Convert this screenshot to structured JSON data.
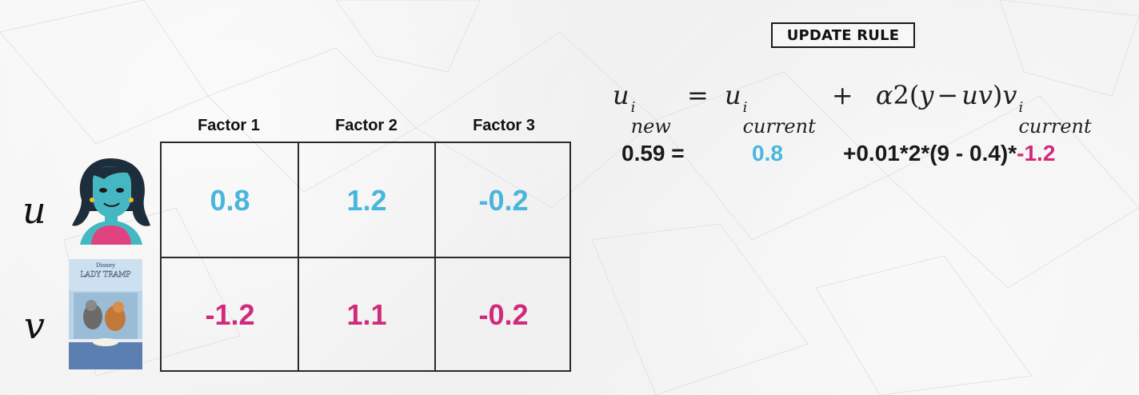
{
  "header": {
    "update_rule_label": "UPDATE RULE"
  },
  "formula": {
    "u": "u",
    "new_sup": "i",
    "new_sub": "new",
    "equals": "=",
    "current_sub": "current",
    "current_sup": "i",
    "plus": "+",
    "alpha": "α",
    "two": "2",
    "paren_open": "(",
    "y": "y",
    "minus": "−",
    "uv": "uv",
    "paren_close": ")",
    "v": "v",
    "v_sup": "i",
    "v_sub": "current"
  },
  "calculation": {
    "lhs": "0.59 =",
    "current": "0.8",
    "rest_prefix": "+0.01*2*(9 - 0.4)*",
    "rest_neg": "-1.2"
  },
  "table": {
    "headers": [
      "Factor 1",
      "Factor 2",
      "Factor 3"
    ],
    "rows": [
      {
        "label": "u",
        "values": [
          "0.8",
          "1.2",
          "-0.2"
        ]
      },
      {
        "label": "v",
        "values": [
          "-1.2",
          "1.1",
          "-0.2"
        ]
      }
    ]
  },
  "poster": {
    "brand": "Disney",
    "title_line": "LADY TRAMP"
  },
  "colors": {
    "u_color": "#49b6dc",
    "v_color": "#d02a7a",
    "line_color": "#2a2a2a"
  }
}
